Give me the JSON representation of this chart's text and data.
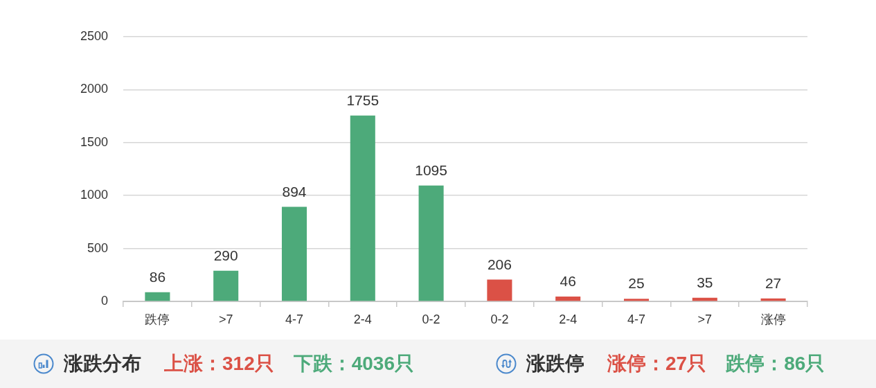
{
  "chart_data": [
    {
      "type": "bar",
      "categories": [
        "跌停",
        ">7",
        "4-7",
        "2-4",
        "0-2",
        "0-2",
        "2-4",
        "4-7",
        ">7",
        "涨停"
      ],
      "values": [
        86,
        290,
        894,
        1755,
        1095,
        206,
        46,
        25,
        35,
        27
      ],
      "colors": [
        "#4daa7a",
        "#4daa7a",
        "#4daa7a",
        "#4daa7a",
        "#4daa7a",
        "#db5146",
        "#db5146",
        "#db5146",
        "#db5146",
        "#db5146"
      ],
      "ylim": [
        0,
        2500
      ],
      "yticks": [
        0,
        500,
        1000,
        1500,
        2000,
        2500
      ],
      "grid": "y",
      "data_labels": true
    },
    {
      "type": "other",
      "title": "涨跌分布",
      "annotations": [
        "上涨：312只",
        "下跌：4036只"
      ],
      "colors": [
        "#db5146",
        "#4daa7a"
      ]
    },
    {
      "type": "other",
      "title": "涨跌停",
      "annotations": [
        "涨停：27只",
        "跌停：86只"
      ],
      "colors": [
        "#db5146",
        "#4daa7a"
      ]
    }
  ]
}
